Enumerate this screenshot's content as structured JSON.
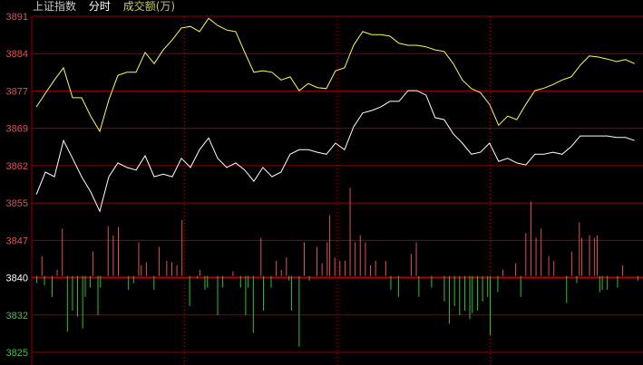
{
  "header": {
    "index_name": "上证指数",
    "view": "分时",
    "indicator": "成交额(万)"
  },
  "colors": {
    "background": "#000000",
    "grid": "#8c0000",
    "axis_up": "#e05050",
    "axis_base": "#ffffff",
    "axis_down": "#40c040",
    "price_line": "#ffffff",
    "avg_line": "#ffff40",
    "bar_up": "#e05050",
    "bar_down": "#30c030",
    "header_name": "#c8c8c8",
    "header_view": "#ffffff",
    "header_indicator": "#c8c864"
  },
  "chart_data": {
    "type": "line",
    "title": "",
    "y_ticks": [
      "3891",
      "3884",
      "3877",
      "3869",
      "3862",
      "3855",
      "3847",
      "3840",
      "3832",
      "3825"
    ],
    "ylim": [
      3825,
      3891
    ],
    "baseline": 3840,
    "xlim_minutes": [
      0,
      240
    ],
    "vertical_dividers_minutes": [
      60,
      120,
      180
    ],
    "grid": true,
    "series": [
      {
        "color": "#ffff40",
        "values": [
          3873.2,
          3875.9,
          3878.5,
          3880.9,
          3875.0,
          3875.0,
          3871.4,
          3868.4,
          3874.6,
          3879.4,
          3880.0,
          3880.0,
          3883.9,
          3881.7,
          3884.4,
          3886.4,
          3888.7,
          3889.0,
          3888.0,
          3890.6,
          3889.2,
          3888.3,
          3888.0,
          3883.9,
          3880.0,
          3880.3,
          3880.0,
          3878.5,
          3879.1,
          3876.4,
          3877.8,
          3877.0,
          3876.8,
          3880.3,
          3880.9,
          3885.3,
          3888.0,
          3887.4,
          3887.4,
          3887.1,
          3885.7,
          3885.3,
          3885.3,
          3885.0,
          3884.4,
          3884.1,
          3881.7,
          3878.5,
          3876.8,
          3876.0,
          3873.7,
          3869.6,
          3871.4,
          3870.7,
          3873.7,
          3876.4,
          3876.9,
          3877.6,
          3878.5,
          3879.1,
          3881.4,
          3883.2,
          3883.0,
          3882.6,
          3882.1,
          3882.5,
          3881.7
        ]
      },
      {
        "color": "#ffffff",
        "values": [
          3856.0,
          3860.4,
          3859.5,
          3866.6,
          3863.1,
          3859.5,
          3856.5,
          3852.7,
          3859.5,
          3862.2,
          3861.3,
          3860.8,
          3863.6,
          3859.5,
          3860.0,
          3859.5,
          3863.1,
          3861.3,
          3864.8,
          3867.1,
          3863.1,
          3861.3,
          3862.2,
          3860.8,
          3858.6,
          3861.3,
          3859.5,
          3860.4,
          3863.9,
          3864.8,
          3864.8,
          3864.3,
          3863.9,
          3866.1,
          3864.8,
          3869.3,
          3872.0,
          3872.5,
          3873.2,
          3874.3,
          3874.3,
          3876.4,
          3876.4,
          3875.5,
          3871.1,
          3870.7,
          3867.9,
          3866.1,
          3863.9,
          3864.3,
          3866.1,
          3862.5,
          3863.1,
          3862.2,
          3861.8,
          3863.9,
          3863.9,
          3864.3,
          3863.9,
          3865.4,
          3867.5,
          3867.5,
          3867.5,
          3867.5,
          3867.2,
          3867.2,
          3866.6
        ]
      }
    ],
    "bars": [
      {
        "t": 4,
        "v": 3843.9
      },
      {
        "t": 10,
        "v": 3841.2
      },
      {
        "t": 12,
        "v": 3849.3
      },
      {
        "t": 24,
        "v": 3844.8
      },
      {
        "t": 30,
        "v": 3849.8
      },
      {
        "t": 32,
        "v": 3848.0
      },
      {
        "t": 34,
        "v": 3849.6
      },
      {
        "t": 42,
        "v": 3846.6
      },
      {
        "t": 43,
        "v": 3842.1
      },
      {
        "t": 45,
        "v": 3842.7
      },
      {
        "t": 50,
        "v": 3845.7
      },
      {
        "t": 53,
        "v": 3843.0
      },
      {
        "t": 55,
        "v": 3842.7
      },
      {
        "t": 57,
        "v": 3842.1
      },
      {
        "t": 59,
        "v": 3851.0
      },
      {
        "t": 66,
        "v": 3841.2
      },
      {
        "t": 79,
        "v": 3840.9
      },
      {
        "t": 90,
        "v": 3847.5
      },
      {
        "t": 96,
        "v": 3843.0
      },
      {
        "t": 98,
        "v": 3841.2
      },
      {
        "t": 100,
        "v": 3843.6
      },
      {
        "t": 107,
        "v": 3846.6
      },
      {
        "t": 112,
        "v": 3845.7
      },
      {
        "t": 114,
        "v": 3842.5
      },
      {
        "t": 116,
        "v": 3846.6
      },
      {
        "t": 117,
        "v": 3851.9
      },
      {
        "t": 119,
        "v": 3843.6
      },
      {
        "t": 121,
        "v": 3843.0
      },
      {
        "t": 123,
        "v": 3843.0
      },
      {
        "t": 125,
        "v": 3857.3
      },
      {
        "t": 127,
        "v": 3846.6
      },
      {
        "t": 129,
        "v": 3848.0
      },
      {
        "t": 131,
        "v": 3846.6
      },
      {
        "t": 133,
        "v": 3842.1
      },
      {
        "t": 135,
        "v": 3843.0
      },
      {
        "t": 139,
        "v": 3843.0
      },
      {
        "t": 149,
        "v": 3844.3
      },
      {
        "t": 151,
        "v": 3846.6
      },
      {
        "t": 185,
        "v": 3841.2
      },
      {
        "t": 190,
        "v": 3842.5
      },
      {
        "t": 194,
        "v": 3848.4
      },
      {
        "t": 196,
        "v": 3854.6
      },
      {
        "t": 198,
        "v": 3847.5
      },
      {
        "t": 200,
        "v": 3849.3
      },
      {
        "t": 203,
        "v": 3843.9
      },
      {
        "t": 205,
        "v": 3843.0
      },
      {
        "t": 212,
        "v": 3844.8
      },
      {
        "t": 215,
        "v": 3850.5
      },
      {
        "t": 216,
        "v": 3847.5
      },
      {
        "t": 219,
        "v": 3848.0
      },
      {
        "t": 221,
        "v": 3847.5
      },
      {
        "t": 222,
        "v": 3848.0
      },
      {
        "t": 232,
        "v": 3842.1
      },
      {
        "t": 2,
        "v": 3838.6
      },
      {
        "t": 5,
        "v": 3838.2
      },
      {
        "t": 8,
        "v": 3835.9
      },
      {
        "t": 14,
        "v": 3829.1
      },
      {
        "t": 16,
        "v": 3833.2
      },
      {
        "t": 18,
        "v": 3832.0
      },
      {
        "t": 20,
        "v": 3829.7
      },
      {
        "t": 21,
        "v": 3835.9
      },
      {
        "t": 23,
        "v": 3837.7
      },
      {
        "t": 26,
        "v": 3832.3
      },
      {
        "t": 27,
        "v": 3837.7
      },
      {
        "t": 38,
        "v": 3837.3
      },
      {
        "t": 40,
        "v": 3838.6
      },
      {
        "t": 48,
        "v": 3837.3
      },
      {
        "t": 62,
        "v": 3834.1
      },
      {
        "t": 65,
        "v": 3839.5
      },
      {
        "t": 68,
        "v": 3837.3
      },
      {
        "t": 69,
        "v": 3837.7
      },
      {
        "t": 73,
        "v": 3832.3
      },
      {
        "t": 75,
        "v": 3837.7
      },
      {
        "t": 82,
        "v": 3837.7
      },
      {
        "t": 84,
        "v": 3832.3
      },
      {
        "t": 85,
        "v": 3837.7
      },
      {
        "t": 87,
        "v": 3828.8
      },
      {
        "t": 91,
        "v": 3833.2
      },
      {
        "t": 94,
        "v": 3837.7
      },
      {
        "t": 101,
        "v": 3839.1
      },
      {
        "t": 102,
        "v": 3833.2
      },
      {
        "t": 105,
        "v": 3826.1
      },
      {
        "t": 109,
        "v": 3839.1
      },
      {
        "t": 141,
        "v": 3837.3
      },
      {
        "t": 144,
        "v": 3835.9
      },
      {
        "t": 152,
        "v": 3835.9
      },
      {
        "t": 157,
        "v": 3837.7
      },
      {
        "t": 162,
        "v": 3835.0
      },
      {
        "t": 164,
        "v": 3830.6
      },
      {
        "t": 166,
        "v": 3834.1
      },
      {
        "t": 168,
        "v": 3832.3
      },
      {
        "t": 170,
        "v": 3833.2
      },
      {
        "t": 172,
        "v": 3831.5
      },
      {
        "t": 173,
        "v": 3832.7
      },
      {
        "t": 175,
        "v": 3833.2
      },
      {
        "t": 177,
        "v": 3835.0
      },
      {
        "t": 179,
        "v": 3835.9
      },
      {
        "t": 180,
        "v": 3828.4
      },
      {
        "t": 183,
        "v": 3836.8
      },
      {
        "t": 192,
        "v": 3835.9
      },
      {
        "t": 210,
        "v": 3834.7
      },
      {
        "t": 214,
        "v": 3838.6
      },
      {
        "t": 223,
        "v": 3836.8
      },
      {
        "t": 224,
        "v": 3837.3
      },
      {
        "t": 226,
        "v": 3837.3
      },
      {
        "t": 230,
        "v": 3837.7
      },
      {
        "t": 238,
        "v": 3839.1
      }
    ]
  }
}
